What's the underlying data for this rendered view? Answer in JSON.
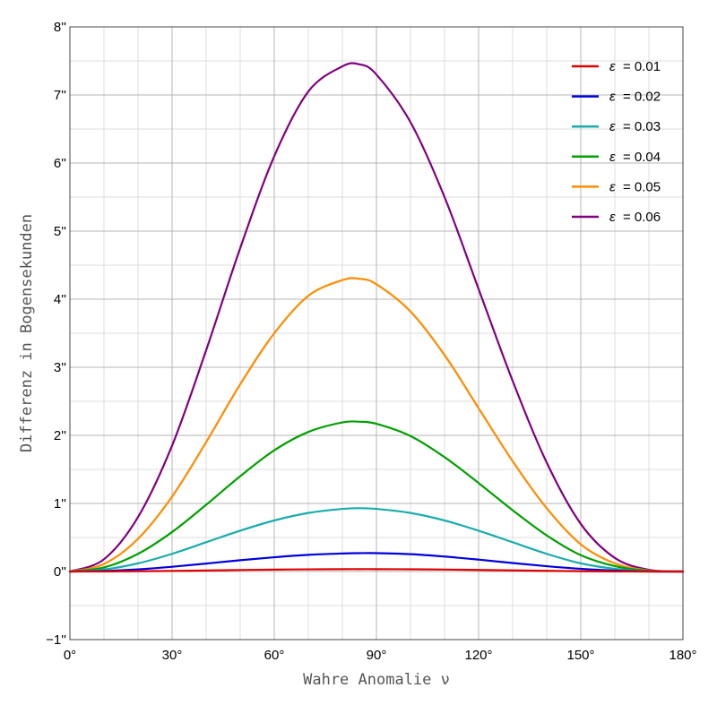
{
  "chart_data": {
    "type": "line",
    "xlabel": "Wahre Anomalie ν",
    "ylabel": "Differenz in Bogensekunden",
    "xlim": [
      0,
      180
    ],
    "ylim": [
      -1,
      8
    ],
    "x_ticks": [
      0,
      30,
      60,
      90,
      120,
      150,
      180
    ],
    "x_tick_labels": [
      "0°",
      "30°",
      "60°",
      "90°",
      "120°",
      "150°",
      "180°"
    ],
    "y_ticks": [
      -1,
      0,
      1,
      2,
      3,
      4,
      5,
      6,
      7,
      8
    ],
    "y_tick_labels": [
      "−1''",
      "0''",
      "1''",
      "2''",
      "3''",
      "4''",
      "5''",
      "6''",
      "7''",
      "8''"
    ],
    "grid": true,
    "legend_position": "top-right",
    "x": [
      0,
      10,
      20,
      30,
      40,
      50,
      60,
      70,
      80,
      85,
      90,
      100,
      110,
      120,
      130,
      140,
      150,
      160,
      170,
      180
    ],
    "series": [
      {
        "name": "ε = 0.01",
        "label_symbol": "ε",
        "label_value": "= 0.01",
        "color": "#e00000",
        "values": [
          0,
          0.001,
          0.004,
          0.009,
          0.015,
          0.022,
          0.028,
          0.032,
          0.035,
          0.035,
          0.035,
          0.033,
          0.029,
          0.023,
          0.016,
          0.01,
          0.005,
          0.002,
          0.0004,
          0
        ]
      },
      {
        "name": "ε = 0.02",
        "label_symbol": "ε",
        "label_value": "= 0.02",
        "color": "#0000dd",
        "values": [
          0,
          0.008,
          0.032,
          0.07,
          0.117,
          0.166,
          0.21,
          0.245,
          0.265,
          0.27,
          0.27,
          0.255,
          0.22,
          0.175,
          0.125,
          0.078,
          0.04,
          0.014,
          0.002,
          0
        ]
      },
      {
        "name": "ε = 0.03",
        "label_symbol": "ε",
        "label_value": "= 0.03",
        "color": "#1aacac",
        "values": [
          0,
          0.03,
          0.12,
          0.26,
          0.43,
          0.6,
          0.75,
          0.86,
          0.92,
          0.93,
          0.92,
          0.86,
          0.75,
          0.6,
          0.43,
          0.26,
          0.12,
          0.04,
          0.005,
          0
        ]
      },
      {
        "name": "ε = 0.04",
        "label_symbol": "ε",
        "label_value": "= 0.04",
        "color": "#00a000",
        "values": [
          0,
          0.06,
          0.26,
          0.58,
          0.98,
          1.4,
          1.78,
          2.05,
          2.19,
          2.2,
          2.17,
          1.99,
          1.68,
          1.3,
          0.9,
          0.53,
          0.24,
          0.08,
          0.01,
          0
        ]
      },
      {
        "name": "ε = 0.05",
        "label_symbol": "ε",
        "label_value": "= 0.05",
        "color": "#ff8c00",
        "values": [
          0,
          0.11,
          0.48,
          1.1,
          1.9,
          2.75,
          3.5,
          4.05,
          4.28,
          4.3,
          4.22,
          3.82,
          3.18,
          2.4,
          1.62,
          0.93,
          0.4,
          0.12,
          0.015,
          0
        ]
      },
      {
        "name": "ε = 0.06",
        "label_symbol": "ε",
        "label_value": "= 0.06",
        "color": "#800080",
        "values": [
          0,
          0.18,
          0.8,
          1.85,
          3.25,
          4.75,
          6.1,
          7.05,
          7.42,
          7.45,
          7.3,
          6.6,
          5.5,
          4.15,
          2.8,
          1.6,
          0.7,
          0.2,
          0.025,
          0
        ]
      }
    ]
  }
}
